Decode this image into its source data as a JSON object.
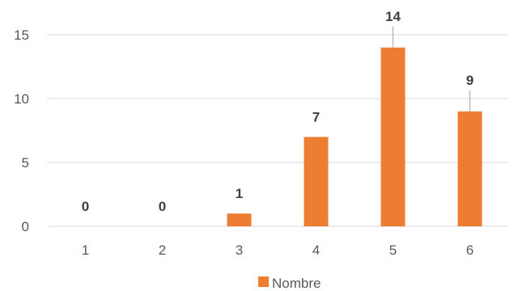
{
  "chart_data": {
    "type": "bar",
    "categories": [
      "1",
      "2",
      "3",
      "4",
      "5",
      "6"
    ],
    "series": [
      {
        "name": "Nombre",
        "values": [
          0,
          0,
          1,
          7,
          14,
          9
        ],
        "color": "#ED7D31"
      }
    ],
    "data_labels": [
      "0",
      "0",
      "1",
      "7",
      "14",
      "9"
    ],
    "y_ticks": [
      "0",
      "5",
      "10",
      "15"
    ],
    "ylim": [
      0,
      15
    ],
    "grid": true,
    "legend_position": "bottom",
    "gridline_color": "#d9d9d9",
    "leader_line_color": "#a6a6a6",
    "title": "",
    "xlabel": "",
    "ylabel": ""
  }
}
